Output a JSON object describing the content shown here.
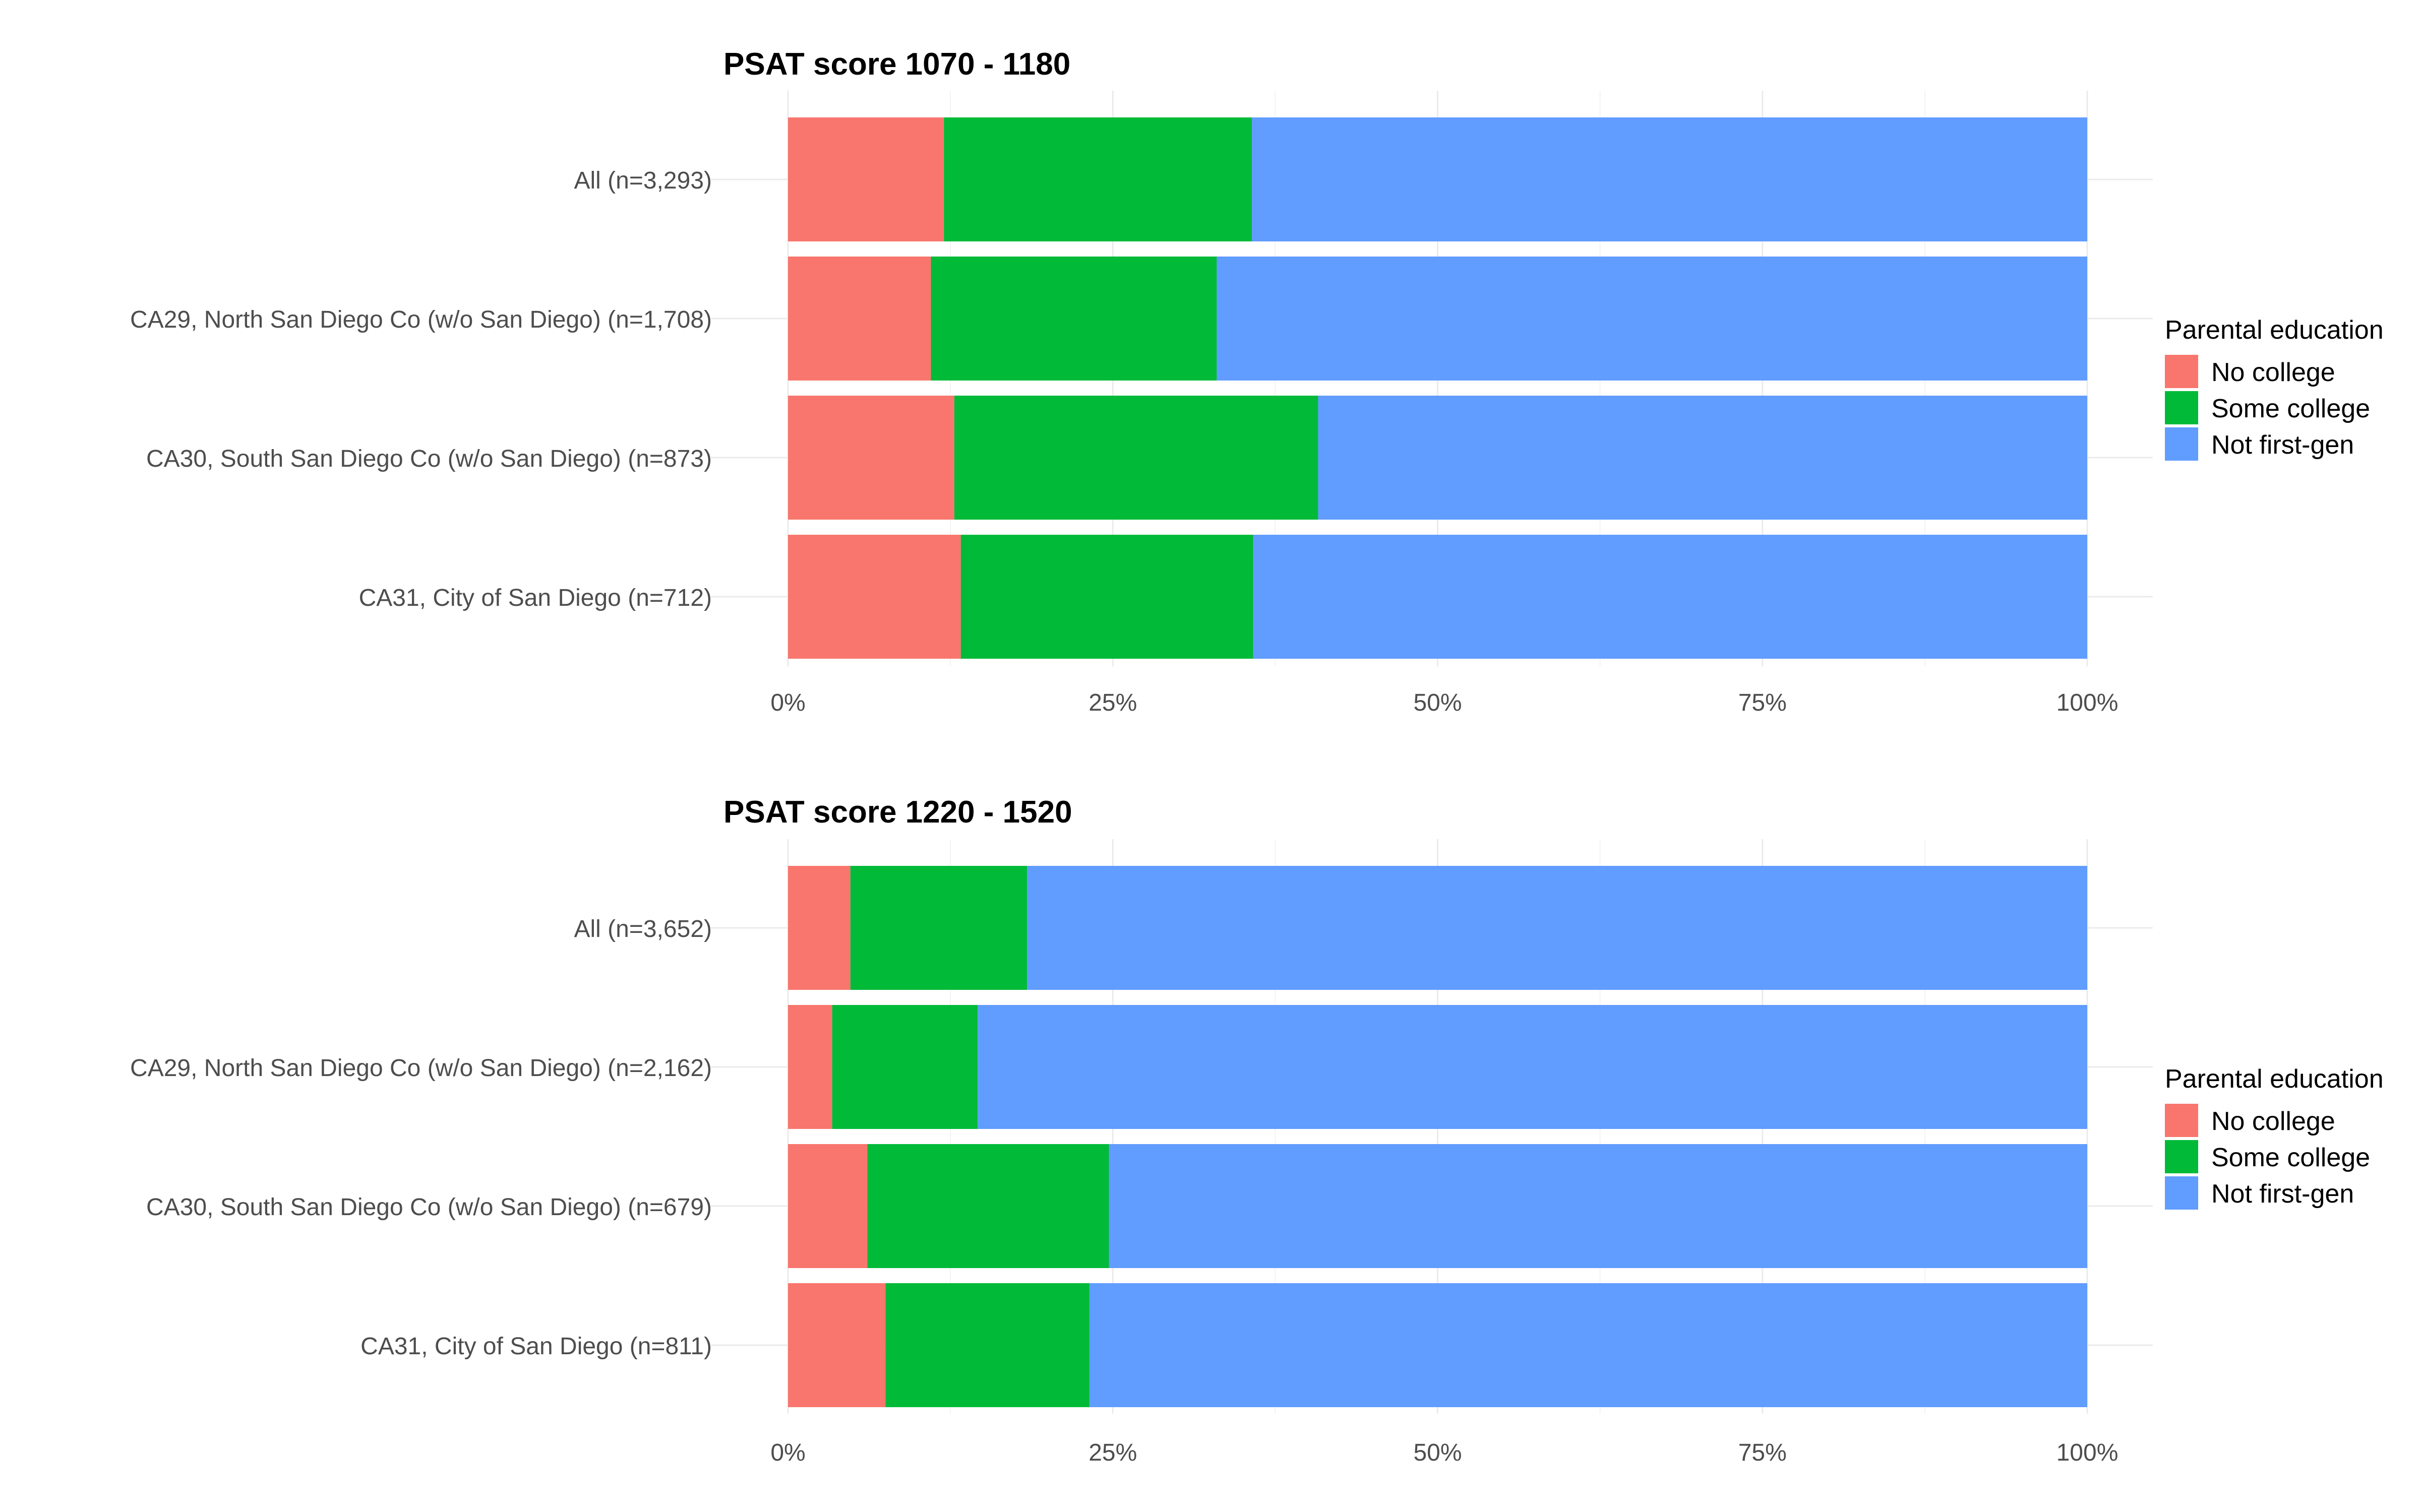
{
  "chart_data": [
    {
      "type": "bar",
      "orientation": "horizontal",
      "stacked": true,
      "title": "PSAT score 1070 - 1180",
      "xlabel": "",
      "ylabel": "",
      "xlim": [
        0,
        100
      ],
      "x_ticks": [
        "0%",
        "25%",
        "50%",
        "75%",
        "100%"
      ],
      "x_tick_values": [
        0,
        25,
        50,
        75,
        100
      ],
      "grid": true,
      "legend_position": "right",
      "legend_title": "Parental education",
      "categories": [
        "All (n=3,293)",
        "CA29, North San Diego Co (w/o San Diego) (n=1,708)",
        "CA30, South San Diego Co (w/o San Diego) (n=873)",
        "CA31, City of San Diego (n=712)"
      ],
      "series": [
        {
          "name": "No college",
          "color": "#F8766D",
          "values": [
            12.0,
            11.0,
            12.8,
            13.3
          ]
        },
        {
          "name": "Some college",
          "color": "#00BA38",
          "values": [
            23.7,
            22.0,
            28.0,
            22.5
          ]
        },
        {
          "name": "Not first-gen",
          "color": "#619CFF",
          "values": [
            64.3,
            67.0,
            59.2,
            64.2
          ]
        }
      ]
    },
    {
      "type": "bar",
      "orientation": "horizontal",
      "stacked": true,
      "title": "PSAT score 1220 - 1520",
      "xlabel": "",
      "ylabel": "",
      "xlim": [
        0,
        100
      ],
      "x_ticks": [
        "0%",
        "25%",
        "50%",
        "75%",
        "100%"
      ],
      "x_tick_values": [
        0,
        25,
        50,
        75,
        100
      ],
      "grid": true,
      "legend_position": "right",
      "legend_title": "Parental education",
      "categories": [
        "All (n=3,652)",
        "CA29, North San Diego Co (w/o San Diego) (n=2,162)",
        "CA30, South San Diego Co (w/o San Diego) (n=679)",
        "CA31, City of San Diego (n=811)"
      ],
      "series": [
        {
          "name": "No college",
          "color": "#F8766D",
          "values": [
            4.8,
            3.4,
            6.1,
            7.5
          ]
        },
        {
          "name": "Some college",
          "color": "#00BA38",
          "values": [
            13.6,
            11.2,
            18.6,
            15.7
          ]
        },
        {
          "name": "Not first-gen",
          "color": "#619CFF",
          "values": [
            81.6,
            85.4,
            75.3,
            76.8
          ]
        }
      ]
    }
  ]
}
